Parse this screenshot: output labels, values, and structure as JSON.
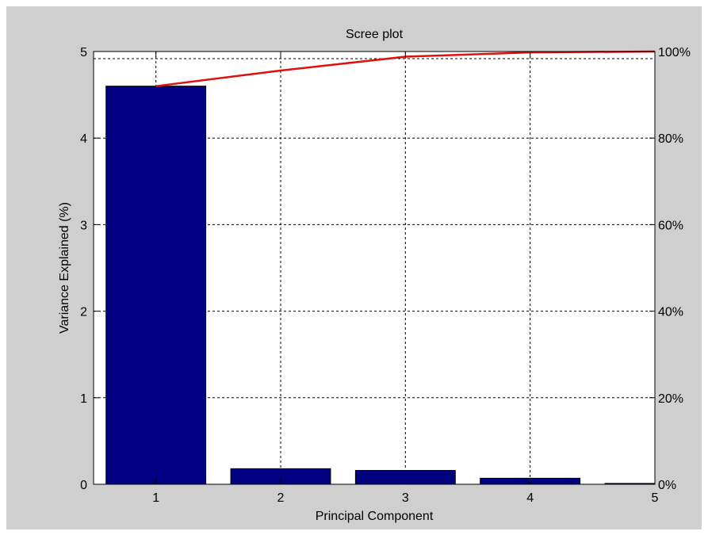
{
  "chart_data": {
    "type": "bar",
    "title": "Scree plot",
    "xlabel": "Principal Component",
    "ylabel": "Variance Explained (%)",
    "categories": [
      "1",
      "2",
      "3",
      "4",
      "5"
    ],
    "x_ticks": [
      "1",
      "2",
      "3",
      "4",
      "5"
    ],
    "x_range": [
      0.5,
      5
    ],
    "ylim": [
      0,
      5
    ],
    "y_ticks": [
      "0",
      "1",
      "2",
      "3",
      "4",
      "5"
    ],
    "y2lim": [
      0,
      100
    ],
    "y2_ticks": [
      "0%",
      "20%",
      "40%",
      "60%",
      "80%",
      "100%"
    ],
    "grid": true,
    "series": [
      {
        "type": "bar",
        "values": [
          4.6,
          0.18,
          0.16,
          0.07,
          0.01
        ],
        "color": "#000080"
      },
      {
        "type": "line",
        "axis": "right",
        "x": [
          1,
          2,
          3,
          4,
          5
        ],
        "values": [
          92,
          95.6,
          98.8,
          99.8,
          100
        ],
        "color": "#e01010"
      }
    ]
  }
}
